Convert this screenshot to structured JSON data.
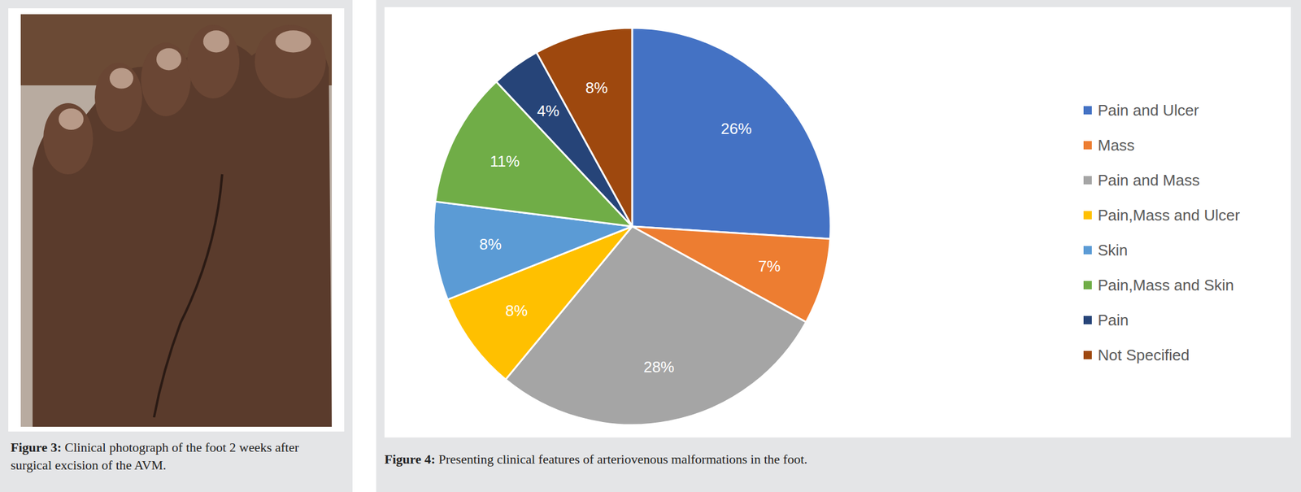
{
  "figure3": {
    "label": "Figure 3:",
    "caption": "Clinical photograph of the foot 2 weeks after surgical excision of the AVM."
  },
  "chart_data": {
    "type": "pie",
    "caption_label": "Figure 4:",
    "caption": "Presenting clinical features of arteriovenous malformations in the foot.",
    "categories": [
      "Pain and Ulcer",
      "Mass",
      "Pain and Mass",
      "Pain,Mass and Ulcer",
      "Skin",
      "Pain,Mass and Skin",
      "Pain",
      "Not Specified"
    ],
    "values": [
      26,
      7,
      28,
      8,
      8,
      11,
      4,
      8
    ],
    "value_labels": [
      "26%",
      "7%",
      "28%",
      "8%",
      "8%",
      "11%",
      "4%",
      "8%"
    ],
    "colors": [
      "#4472c4",
      "#ed7d31",
      "#a5a5a5",
      "#ffc000",
      "#5b9bd5",
      "#70ad47",
      "#264478",
      "#9e480e"
    ],
    "data_labels": true,
    "legend": "right"
  }
}
